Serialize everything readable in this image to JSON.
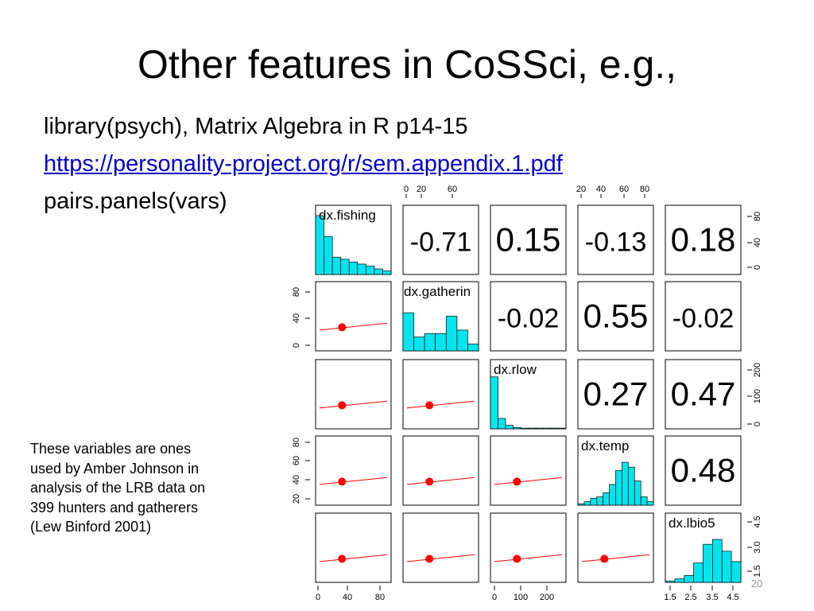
{
  "title": "Other features in CoSSci, e.g.,",
  "body": {
    "line1": "library(psych), Matrix Algebra in R p14-15",
    "link": "https://personality-project.org/r/sem.appendix.1.pdf",
    "line3": "pairs.panels(vars)"
  },
  "note": [
    "These variables are ones",
    "used by Amber Johnson in",
    "analysis of the LRB data on",
    "399 hunters and gatherers",
    "(Lew Binford 2001)"
  ],
  "matrix": {
    "variables": [
      "dx.fishing",
      "dx.gatherin",
      "dx.rlow",
      "dx.temp",
      "dx.lbio5"
    ],
    "correlations": [
      [
        -0.71,
        0.15,
        -0.13,
        0.18
      ],
      [
        -0.02,
        0.55,
        -0.02
      ],
      [
        0.27,
        0.47
      ],
      [
        0.48
      ]
    ],
    "histograms": [
      [
        85,
        55,
        25,
        22,
        18,
        15,
        12,
        8,
        5
      ],
      [
        55,
        20,
        25,
        25,
        50,
        30,
        10
      ],
      [
        75,
        15,
        5,
        2,
        1,
        1,
        1,
        1,
        1,
        1
      ],
      [
        2,
        5,
        10,
        12,
        18,
        30,
        50,
        62,
        55,
        35,
        12,
        5
      ],
      [
        2,
        5,
        10,
        28,
        55,
        62,
        45,
        30
      ]
    ],
    "top_ticks": {
      "col1": [
        "0",
        "20",
        "60"
      ],
      "col3": [
        "20",
        "40",
        "60",
        "80"
      ]
    },
    "right_ticks": {
      "row0": [
        "0",
        "40",
        "80"
      ],
      "row2": [
        "0",
        "100",
        "200"
      ],
      "row4": [
        "1.5",
        "3.0",
        "4.5"
      ]
    },
    "left_ticks": {
      "row1": [
        "0",
        "40",
        "80"
      ],
      "row3": [
        "20",
        "40",
        "60",
        "80"
      ]
    },
    "bottom_ticks": {
      "col0": [
        "0",
        "40",
        "80"
      ],
      "col2": [
        "0",
        "100",
        "200"
      ],
      "col4": [
        "1.5",
        "2.5",
        "3.5",
        "4.5"
      ]
    }
  },
  "page_number": "20"
}
